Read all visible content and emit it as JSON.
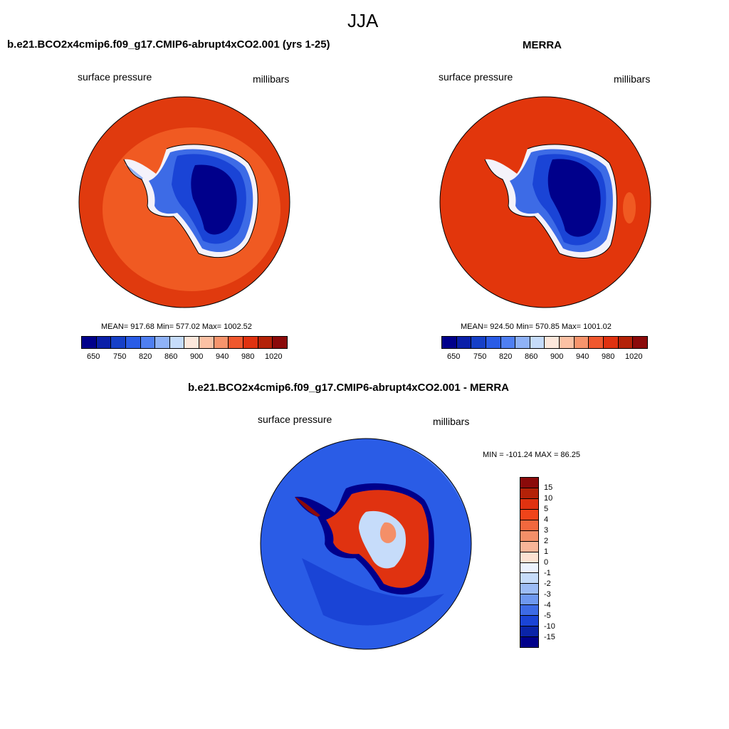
{
  "page_title": "JJA",
  "panels": [
    {
      "title": "b.e21.BCO2x4cmip6.f09_g17.CMIP6-abrupt4xCO2.001 (yrs 1-25)",
      "variable": "surface pressure",
      "units": "millibars",
      "stats": "MEAN= 917.68  Min= 577.02  Max= 1002.52"
    },
    {
      "title": "MERRA",
      "variable": "surface pressure",
      "units": "millibars",
      "stats": "MEAN= 924.50  Min= 570.85  Max= 1001.02"
    }
  ],
  "diff_panel": {
    "title": "b.e21.BCO2x4cmip6.f09_g17.CMIP6-abrupt4xCO2.001 - MERRA",
    "variable": "surface pressure",
    "units": "millibars",
    "stats": "MIN = -101.24 MAX =  86.25"
  },
  "colorbar_abs": {
    "colors": [
      "#00008b",
      "#0a1fa8",
      "#1640c8",
      "#2a5ce6",
      "#4f7ff2",
      "#8fb2f7",
      "#c6dcfa",
      "#fde8dc",
      "#fbc1a4",
      "#f7946c",
      "#f0582e",
      "#e03210",
      "#b42208",
      "#8b0a0a"
    ],
    "ticks": [
      "650",
      "750",
      "820",
      "860",
      "900",
      "940",
      "980",
      "1020"
    ]
  },
  "colorbar_diff": {
    "colors": [
      "#8b0a0a",
      "#b42208",
      "#e03210",
      "#f0441a",
      "#f2683e",
      "#f48f68",
      "#f8b598",
      "#fde2d2",
      "#ecf2fe",
      "#c6dcfa",
      "#9cbcf6",
      "#6e98f0",
      "#3d6be6",
      "#1a44d6",
      "#0a24a8",
      "#00008b"
    ],
    "ticks": [
      "15",
      "10",
      "5",
      "4",
      "3",
      "2",
      "1",
      "0",
      "-1",
      "-2",
      "-3",
      "-4",
      "-5",
      "-10",
      "-15"
    ]
  }
}
